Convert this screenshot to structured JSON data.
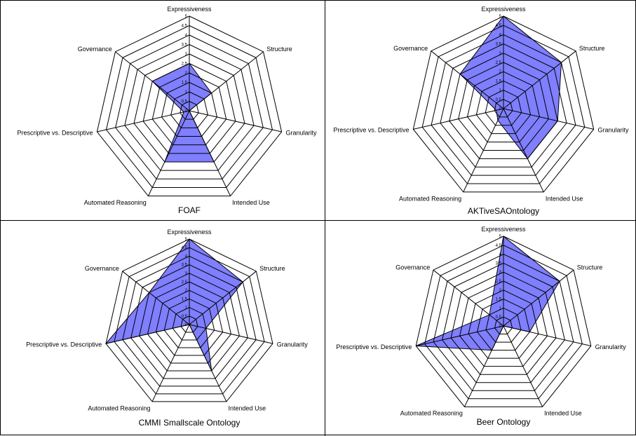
{
  "chart_data": [
    {
      "type": "radar",
      "title": "FOAF",
      "axes": [
        "Expressiveness",
        "Structure",
        "Granularity",
        "Intended Use",
        "Automated Reasoning",
        "Prescriptive vs. Descriptive",
        "Governance"
      ],
      "ticks": [
        "0",
        "0.5",
        "1",
        "1.5",
        "2",
        "2.5",
        "3",
        "3.5",
        "4",
        "4.5",
        "5"
      ],
      "rmax": 5,
      "values": [
        2.5,
        1.5,
        0,
        3,
        3,
        0.3,
        2.5
      ],
      "fill": "#7f7fff",
      "legend": "none",
      "grid": true
    },
    {
      "type": "radar",
      "title": "AKTiveSAOntology",
      "axes": [
        "Expressiveness",
        "Structure",
        "Granularity",
        "Intended Use",
        "Automated Reasoning",
        "Prescriptive vs. Descriptive",
        "Governance"
      ],
      "ticks": [
        "0",
        "0.5",
        "1",
        "1.5",
        "2",
        "2.5",
        "3",
        "3.5",
        "4",
        "4.5",
        "5"
      ],
      "rmax": 5,
      "values": [
        5,
        4,
        3,
        3,
        0.7,
        0.4,
        3
      ],
      "fill": "#7f7fff",
      "legend": "none",
      "grid": true
    },
    {
      "type": "radar",
      "title": "CMMI Smallscale Ontology",
      "axes": [
        "Expressiveness",
        "Structure",
        "Granularity",
        "Intended Use",
        "Automated Reasoning",
        "Prescriptive vs. Descriptive",
        "Governance"
      ],
      "ticks": [
        "0",
        "0.5",
        "1",
        "1.5",
        "2",
        "2.5",
        "3",
        "3.5",
        "4",
        "4.5",
        "5"
      ],
      "rmax": 5,
      "values": [
        5,
        4,
        1,
        3,
        0,
        5,
        3
      ],
      "fill": "#7f7fff",
      "legend": "none",
      "grid": true
    },
    {
      "type": "radar",
      "title": "Beer Ontology",
      "axes": [
        "Expressiveness",
        "Structure",
        "Granularity",
        "Intended Use",
        "Automated Reasoning",
        "Prescriptive vs. Descriptive",
        "Governance"
      ],
      "ticks": [
        "0",
        "0.5",
        "1",
        "1.5",
        "2",
        "2.5",
        "3",
        "3.5",
        "4",
        "4.5",
        "5"
      ],
      "rmax": 5,
      "values": [
        5,
        4,
        1.5,
        0,
        1.5,
        5,
        1
      ],
      "fill": "#7f7fff",
      "legend": "none",
      "grid": true
    }
  ]
}
